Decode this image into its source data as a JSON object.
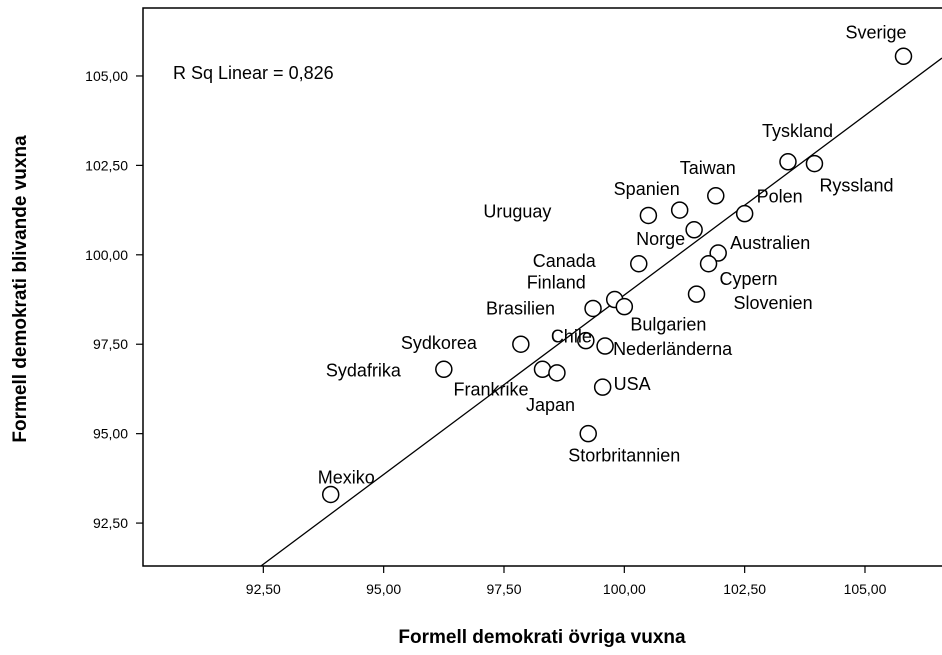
{
  "chart_data": {
    "type": "scatter",
    "xlabel": "Formell demokrati övriga vuxna",
    "ylabel": "Formell demokrati blivande vuxna",
    "annotation": "R Sq Linear = 0,826",
    "xlim": [
      90.0,
      106.6
    ],
    "ylim": [
      91.3,
      106.9
    ],
    "x_ticks": [
      92.5,
      95.0,
      97.5,
      100.0,
      102.5,
      105.0
    ],
    "y_ticks": [
      92.5,
      95.0,
      97.5,
      100.0,
      102.5,
      105.0
    ],
    "x_tick_labels": [
      "92,50",
      "95,00",
      "97,50",
      "100,00",
      "102,50",
      "105,00"
    ],
    "y_tick_labels": [
      "92,50",
      "95,00",
      "97,50",
      "100,00",
      "102,50",
      "105,00"
    ],
    "grid": false,
    "fit_line": {
      "x": [
        92.45,
        106.6
      ],
      "y": [
        91.3,
        105.5
      ]
    },
    "points": [
      {
        "label": "Sverige",
        "x": 105.8,
        "y": 105.55
      },
      {
        "label": "Tyskland",
        "x": 103.4,
        "y": 102.6
      },
      {
        "label": "Ryssland",
        "x": 103.95,
        "y": 102.55
      },
      {
        "label": "Taiwan",
        "x": 101.9,
        "y": 101.65
      },
      {
        "label": "Polen",
        "x": 102.5,
        "y": 101.15
      },
      {
        "label": "Spanien",
        "x": 101.15,
        "y": 101.25
      },
      {
        "label": "Uruguay",
        "x": 100.5,
        "y": 101.1
      },
      {
        "label": "Norge",
        "x": 101.45,
        "y": 100.7
      },
      {
        "label": "Australien",
        "x": 101.95,
        "y": 100.05
      },
      {
        "label": "Canada",
        "x": 100.3,
        "y": 99.75
      },
      {
        "label": "Cypern",
        "x": 101.75,
        "y": 99.75
      },
      {
        "label": "Finland",
        "x": 99.8,
        "y": 98.75
      },
      {
        "label": "Slovenien",
        "x": 101.5,
        "y": 98.9
      },
      {
        "label": "Brasilien",
        "x": 99.35,
        "y": 98.5
      },
      {
        "label": "Bulgarien",
        "x": 100.0,
        "y": 98.55
      },
      {
        "label": "Sydkorea",
        "x": 97.85,
        "y": 97.5
      },
      {
        "label": "Chile",
        "x": 99.2,
        "y": 97.6
      },
      {
        "label": "Nederländerna",
        "x": 99.6,
        "y": 97.45
      },
      {
        "label": "Sydafrika",
        "x": 96.25,
        "y": 96.8
      },
      {
        "label": "Frankrike",
        "x": 98.3,
        "y": 96.8
      },
      {
        "label": "Japan",
        "x": 98.6,
        "y": 96.7
      },
      {
        "label": "USA",
        "x": 99.55,
        "y": 96.3
      },
      {
        "label": "Storbritannien",
        "x": 99.25,
        "y": 95.0
      },
      {
        "label": "Mexiko",
        "x": 93.9,
        "y": 93.3
      }
    ]
  }
}
